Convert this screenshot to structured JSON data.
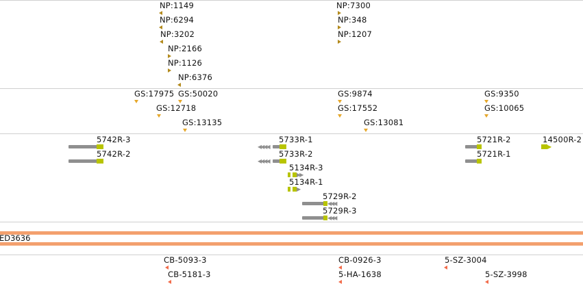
{
  "tracks": {
    "np": {
      "marker_color": "#b38a1c",
      "features": [
        {
          "label": "NP:1149"
        },
        {
          "label": "NP:6294"
        },
        {
          "label": "NP:3202"
        },
        {
          "label": "NP:2166"
        },
        {
          "label": "NP:1126"
        },
        {
          "label": "NP:6376"
        },
        {
          "label": "NP:7300"
        },
        {
          "label": "NP:348"
        },
        {
          "label": "NP:1207"
        }
      ]
    },
    "gs": {
      "marker_color": "#e6a72a",
      "features": [
        {
          "label": "GS:17975"
        },
        {
          "label": "GS:50020"
        },
        {
          "label": "GS:12718"
        },
        {
          "label": "GS:13135"
        },
        {
          "label": "GS:9874"
        },
        {
          "label": "GS:17552"
        },
        {
          "label": "GS:13081"
        },
        {
          "label": "GS:9350"
        },
        {
          "label": "GS:10065"
        }
      ]
    },
    "transcripts": {
      "exon_color": "#b8c400",
      "intron_color": "#8f8f8f",
      "features": [
        {
          "label": "5742R-3"
        },
        {
          "label": "5742R-2"
        },
        {
          "label": "5733R-1"
        },
        {
          "label": "5733R-2"
        },
        {
          "label": "5134R-3"
        },
        {
          "label": "5134R-1"
        },
        {
          "label": "5729R-2"
        },
        {
          "label": "5729R-3"
        },
        {
          "label": "5721R-2"
        },
        {
          "label": "5721R-1"
        },
        {
          "label": "14500R-2"
        }
      ]
    },
    "deficiency": {
      "color": "#f3a06e",
      "label": "ED3636"
    },
    "cb": {
      "marker_color": "#f26b4a",
      "features": [
        {
          "label": "CB-5093-3"
        },
        {
          "label": "CB-5181-3"
        },
        {
          "label": "CB-0926-3"
        },
        {
          "label": "5-HA-1638"
        },
        {
          "label": "5-SZ-3004"
        },
        {
          "label": "5-SZ-3998"
        }
      ]
    }
  }
}
